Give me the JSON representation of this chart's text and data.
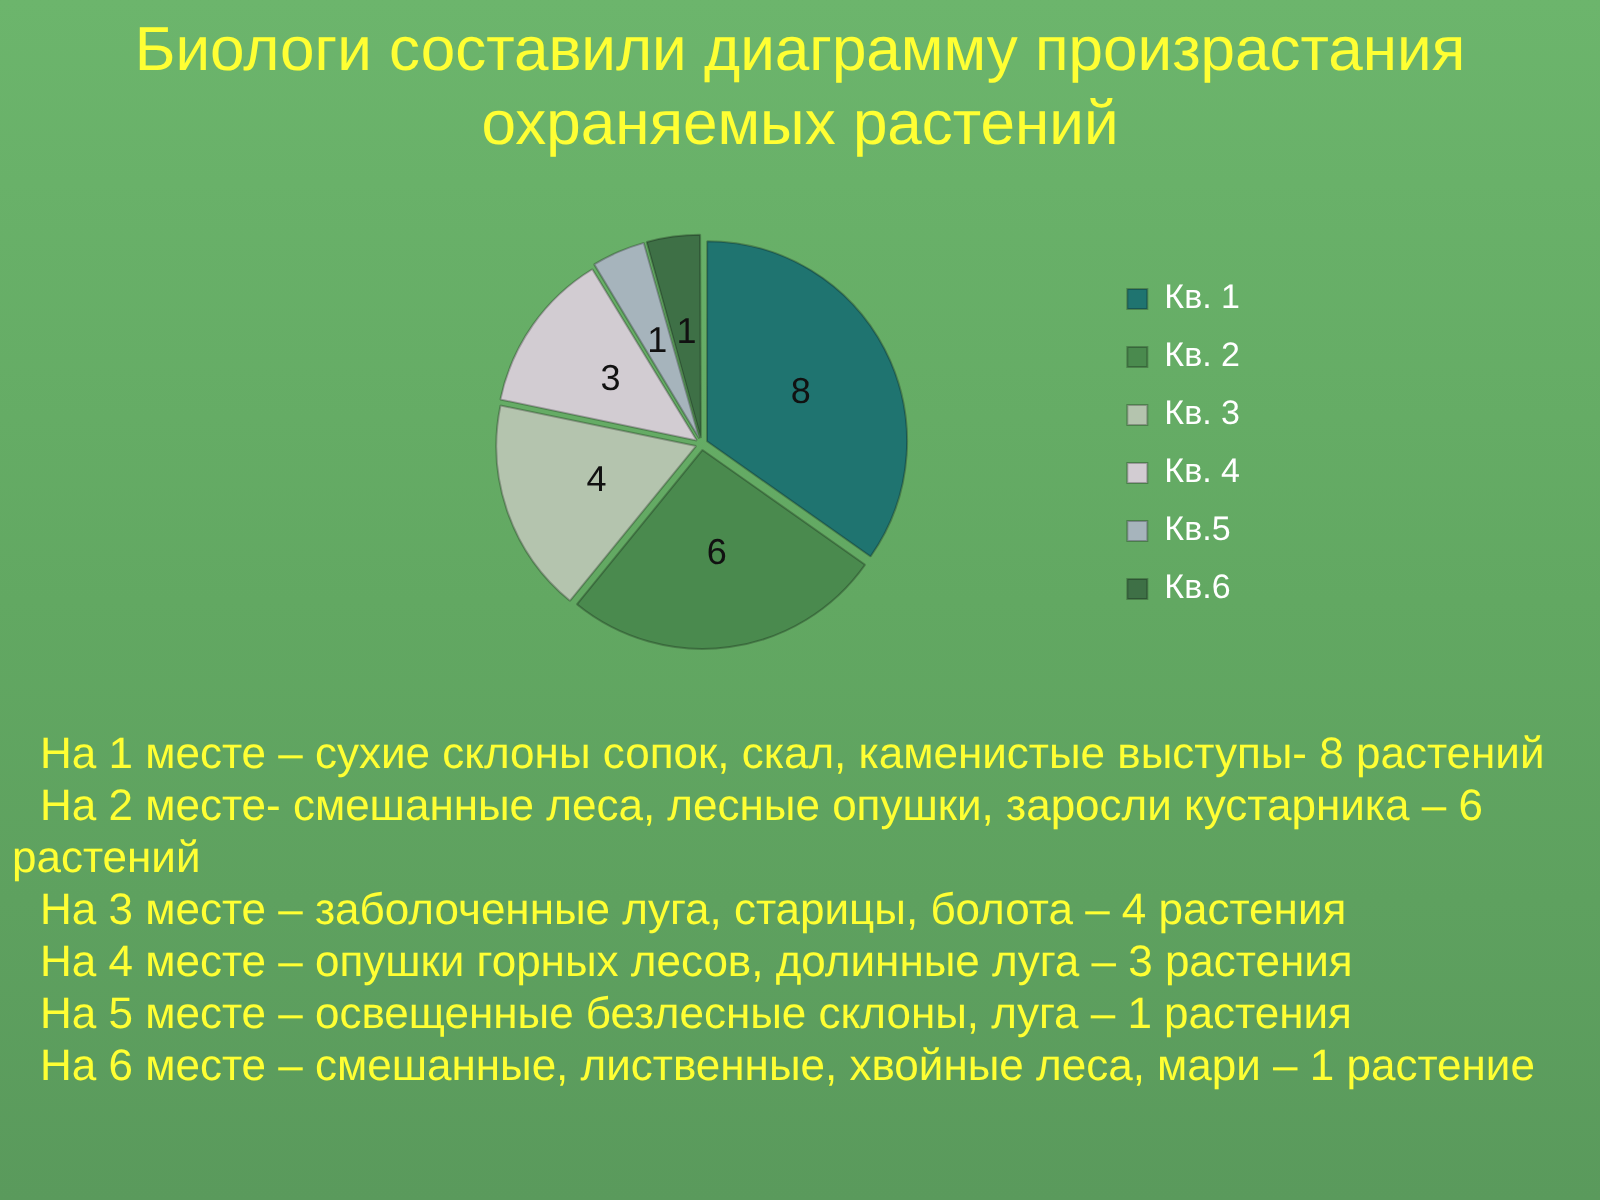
{
  "chart_data": {
    "type": "pie",
    "title": "Биологи составили диаграмму произрастания охраняемых растений",
    "categories": [
      "Кв. 1",
      "Кв. 2",
      "Кв. 3",
      "Кв. 4",
      "Кв.5",
      "Кв.6"
    ],
    "values": [
      8,
      6,
      4,
      3,
      1,
      1
    ],
    "colors": [
      "#1f7470",
      "#4a8a4e",
      "#b4c4ae",
      "#d2ccd2",
      "#a6b4bc",
      "#3e7046"
    ],
    "data_labels": true,
    "legend": "right",
    "annotations": [
      "На 1 месте – сухие склоны сопок, скал, каменистые выступы- 8 растений",
      "На 2 месте- смешанные леса, лесные опушки, заросли кустарника – 6 растений",
      "На 3 месте – заболоченные луга, старицы, болота – 4 растения",
      "На 4 месте – опушки горных лесов, долинные луга – 3 растения",
      "На 5 месте – освещенные безлесные склоны, луга – 1 растения",
      "На 6 месте – смешанные, лиственные, хвойные леса, мари – 1 растение"
    ]
  }
}
